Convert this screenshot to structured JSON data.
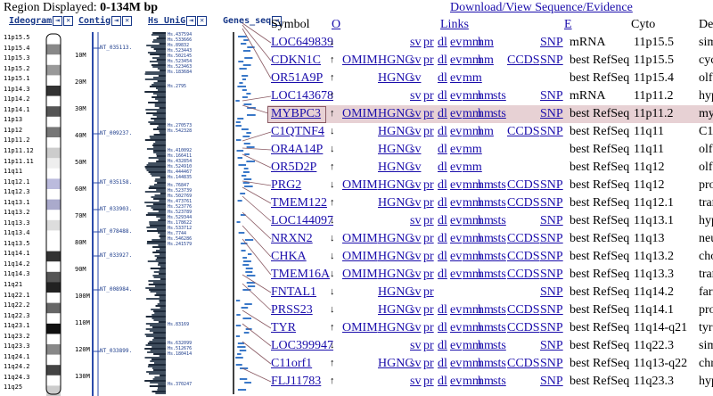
{
  "header": {
    "region_label": "Region Displayed:",
    "region_value": "0-134M bp",
    "download_link": "Download/View Sequence/Evidence"
  },
  "panels": {
    "ideogram": "Ideogram",
    "contig": "Contig",
    "hs_unig": "Hs UniG",
    "genes_seq": "Genes_seq",
    "close_glyph": "✕",
    "arrow_glyph": "⇥"
  },
  "ideogram_bands": [
    "11p15.5",
    "11p15.4",
    "11p15.3",
    "11p15.2",
    "11p15.1",
    "11p14.3",
    "11p14.2",
    "11p14.1",
    "11p13",
    "11p12",
    "11p11.2",
    "11p11.12",
    "11p11.11",
    "11q11",
    "11q12.1",
    "11q12.3",
    "11q13.1",
    "11q13.2",
    "11q13.3",
    "11q13.4",
    "11q13.5",
    "11q14.1",
    "11q14.2",
    "11q14.3",
    "11q21",
    "11q22.1",
    "11q22.2",
    "11q22.3",
    "11q23.1",
    "11q23.2",
    "11q23.3",
    "11q24.1",
    "11q24.2",
    "11q24.3",
    "11q25"
  ],
  "scale_ticks": [
    "10M",
    "20M",
    "30M",
    "40M",
    "50M",
    "60M",
    "70M",
    "80M",
    "90M",
    "100M",
    "110M",
    "120M",
    "130M"
  ],
  "contigs": [
    "NT_035113.",
    "NT_009237.",
    "NT_035158.",
    "NT_033903.",
    "NT_078488.",
    "NT_033927.",
    "NT_008984.",
    "NT_033899."
  ],
  "unigene_groups": [
    "Hs.437594\nHs.533666\nHs.89832\nHs.523443\nHs.502145\nHs.523454\nHs.523463\nHs.183684",
    "Hs.2795",
    "Hs.270573\nHs.542328",
    "Hs.410092\nHs.166411\nHs.432854\nHs.524910\nHs.444467\nHs.144835",
    "Hs.76847\nHs.523739\nHs.502769\nHs.473761\nHs.523776\nHs.523789\nHs.529344\nHs.178622\nHs.533712\nHs.7744\nHs.546286\nHs.241579",
    "Hs.83169",
    "Hs.632099\nHs.512676\nHs.180414",
    "Hs.370247"
  ],
  "table": {
    "headers": {
      "symbol": "Symbol",
      "o": "O",
      "links": "Links",
      "e": "E",
      "cyto": "Cyto",
      "desc": "De"
    },
    "rows": [
      {
        "symbol": "LOC649839",
        "dir": "↓",
        "omim": "",
        "hgnc": "",
        "l": [
          "sv",
          "pr",
          "dl",
          "ev",
          "mm",
          "hm"
        ],
        "ccds": "",
        "snp": "SNP",
        "ev": "mRNA",
        "cyto": "11p15.5",
        "desc": "simil"
      },
      {
        "symbol": "CDKN1C",
        "dir": "↑",
        "omim": "OMIM",
        "hgnc": "HGNC",
        "l": [
          "sv",
          "pr",
          "dl",
          "ev",
          "mm",
          "hm"
        ],
        "ccds": "CCDS",
        "snp": "SNP",
        "ev": "best RefSeq",
        "cyto": "11p15.5",
        "desc": "cycli"
      },
      {
        "symbol": "OR51A9P",
        "dir": "↑",
        "omim": "",
        "hgnc": "HGNC",
        "l": [
          "sv",
          "dl",
          "ev",
          "mm"
        ],
        "ccds": "",
        "snp": "",
        "ev": "best RefSeq",
        "cyto": "11p15.4",
        "desc": "olfac"
      },
      {
        "symbol": "LOC143678",
        "dir": "↑",
        "omim": "",
        "hgnc": "",
        "l": [
          "sv",
          "pr",
          "dl",
          "ev",
          "mm",
          "hm",
          "sts"
        ],
        "ccds": "",
        "snp": "SNP",
        "ev": "mRNA",
        "cyto": "11p11.2",
        "desc": "hypo"
      },
      {
        "symbol": "MYBPC3",
        "dir": "↑",
        "omim": "OMIM",
        "hgnc": "HGNC",
        "l": [
          "sv",
          "pr",
          "dl",
          "ev",
          "mm",
          "hm",
          "sts"
        ],
        "ccds": "",
        "snp": "SNP",
        "ev": "best RefSeq",
        "cyto": "11p11.2",
        "desc": "myos"
      },
      {
        "symbol": "C1QTNF4",
        "dir": "↓",
        "omim": "",
        "hgnc": "HGNC",
        "l": [
          "sv",
          "pr",
          "dl",
          "ev",
          "mm",
          "hm"
        ],
        "ccds": "CCDS",
        "snp": "SNP",
        "ev": "best RefSeq",
        "cyto": "11q11",
        "desc": "C1q"
      },
      {
        "symbol": "OR4A14P",
        "dir": "↓",
        "omim": "",
        "hgnc": "HGNC",
        "l": [
          "sv",
          "dl",
          "ev",
          "mm"
        ],
        "ccds": "",
        "snp": "",
        "ev": "best RefSeq",
        "cyto": "11q11",
        "desc": "olfac"
      },
      {
        "symbol": "OR5D2P",
        "dir": "↑",
        "omim": "",
        "hgnc": "HGNC",
        "l": [
          "sv",
          "dl",
          "ev",
          "mm"
        ],
        "ccds": "",
        "snp": "",
        "ev": "best RefSeq",
        "cyto": "11q12",
        "desc": "olfac"
      },
      {
        "symbol": "PRG2",
        "dir": "↓",
        "omim": "OMIM",
        "hgnc": "HGNC",
        "l": [
          "sv",
          "pr",
          "dl",
          "ev",
          "mm",
          "hm",
          "sts"
        ],
        "ccds": "CCDS",
        "snp": "SNP",
        "ev": "best RefSeq",
        "cyto": "11q12",
        "desc": "prot"
      },
      {
        "symbol": "TMEM122",
        "dir": "↑",
        "omim": "",
        "hgnc": "HGNC",
        "l": [
          "sv",
          "pr",
          "dl",
          "ev",
          "mm",
          "hm",
          "sts"
        ],
        "ccds": "CCDS",
        "snp": "SNP",
        "ev": "best RefSeq",
        "cyto": "11q12.1",
        "desc": "trans"
      },
      {
        "symbol": "LOC144097",
        "dir": "↓",
        "omim": "",
        "hgnc": "",
        "l": [
          "sv",
          "pr",
          "dl",
          "ev",
          "mm",
          "hm",
          "sts"
        ],
        "ccds": "",
        "snp": "SNP",
        "ev": "best RefSeq",
        "cyto": "11q13.1",
        "desc": "hypo"
      },
      {
        "symbol": "NRXN2",
        "dir": "↓",
        "omim": "OMIM",
        "hgnc": "HGNC",
        "l": [
          "sv",
          "pr",
          "dl",
          "ev",
          "mm",
          "hm",
          "sts"
        ],
        "ccds": "CCDS",
        "snp": "SNP",
        "ev": "best RefSeq",
        "cyto": "11q13",
        "desc": "neur"
      },
      {
        "symbol": "CHKA",
        "dir": "↓",
        "omim": "OMIM",
        "hgnc": "HGNC",
        "l": [
          "sv",
          "pr",
          "dl",
          "ev",
          "mm",
          "hm",
          "sts"
        ],
        "ccds": "CCDS",
        "snp": "SNP",
        "ev": "best RefSeq",
        "cyto": "11q13.2",
        "desc": "chol"
      },
      {
        "symbol": "TMEM16A",
        "dir": "↓",
        "omim": "OMIM",
        "hgnc": "HGNC",
        "l": [
          "sv",
          "pr",
          "dl",
          "ev",
          "mm",
          "hm",
          "sts"
        ],
        "ccds": "CCDS",
        "snp": "SNP",
        "ev": "best RefSeq",
        "cyto": "11q13.3",
        "desc": "trans"
      },
      {
        "symbol": "FNTAL1",
        "dir": "↓",
        "omim": "",
        "hgnc": "HGNC",
        "l": [
          "sv",
          "pr"
        ],
        "ccds": "",
        "snp": "SNP",
        "ev": "best RefSeq",
        "cyto": "11q14.2",
        "desc": "farne"
      },
      {
        "symbol": "PRSS23",
        "dir": "↓",
        "omim": "",
        "hgnc": "HGNC",
        "l": [
          "sv",
          "pr",
          "dl",
          "ev",
          "mm",
          "hm",
          "sts"
        ],
        "ccds": "CCDS",
        "snp": "SNP",
        "ev": "best RefSeq",
        "cyto": "11q14.1",
        "desc": "prot"
      },
      {
        "symbol": "TYR",
        "dir": "↑",
        "omim": "OMIM",
        "hgnc": "HGNC",
        "l": [
          "sv",
          "pr",
          "dl",
          "ev",
          "mm",
          "hm",
          "sts"
        ],
        "ccds": "CCDS",
        "snp": "SNP",
        "ev": "best RefSeq",
        "cyto": "11q14-q21",
        "desc": "tyro"
      },
      {
        "symbol": "LOC399947",
        "dir": "↓",
        "omim": "",
        "hgnc": "",
        "l": [
          "sv",
          "pr",
          "dl",
          "ev",
          "mm",
          "hm",
          "sts"
        ],
        "ccds": "",
        "snp": "SNP",
        "ev": "best RefSeq",
        "cyto": "11q22.3",
        "desc": "simil"
      },
      {
        "symbol": "C11orf1",
        "dir": "↑",
        "omim": "",
        "hgnc": "HGNC",
        "l": [
          "sv",
          "pr",
          "dl",
          "ev",
          "mm",
          "hm",
          "sts"
        ],
        "ccds": "CCDS",
        "snp": "SNP",
        "ev": "best RefSeq",
        "cyto": "11q13-q22",
        "desc": "chro"
      },
      {
        "symbol": "FLJ11783",
        "dir": "↑",
        "omim": "",
        "hgnc": "",
        "l": [
          "sv",
          "pr",
          "dl",
          "ev",
          "mm",
          "hm",
          "sts"
        ],
        "ccds": "",
        "snp": "SNP",
        "ev": "best RefSeq",
        "cyto": "11q23.3",
        "desc": "hypo"
      }
    ]
  },
  "colors": {
    "link": "#1a0dab",
    "highlight": "#e7d1d4",
    "panel_text": "#1a3a8a"
  }
}
